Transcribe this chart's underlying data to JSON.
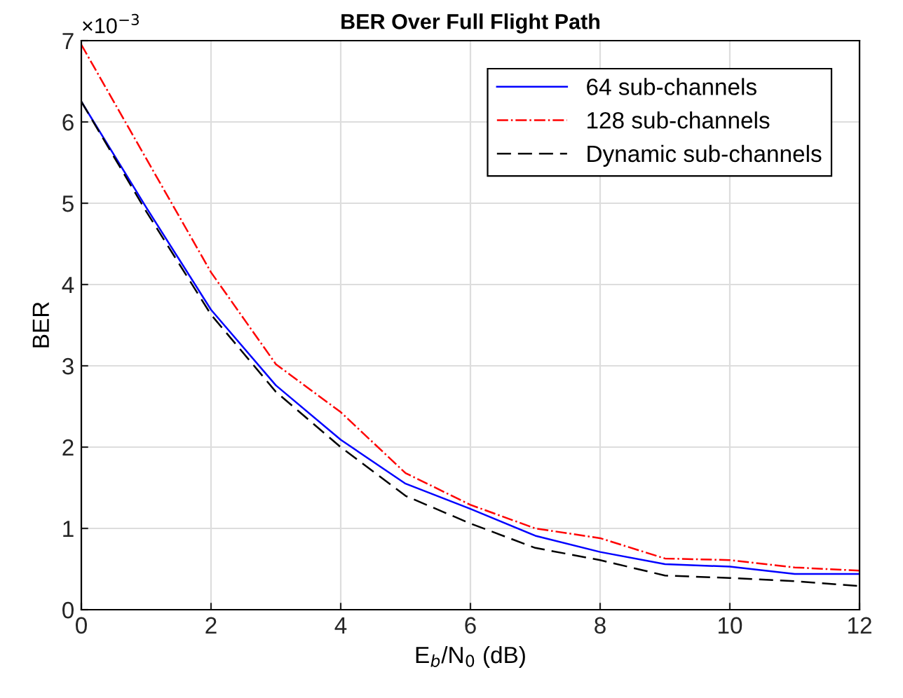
{
  "chart_data": {
    "type": "line",
    "title": "BER Over Full Flight Path",
    "xlabel": "E$_{b}$/N$_{0}$ (dB)",
    "ylabel": "BER",
    "annotations": [
      "×10$^{−3}$"
    ],
    "x": [
      0,
      1,
      2,
      3,
      4,
      5,
      6,
      7,
      8,
      9,
      10,
      11,
      12
    ],
    "series": [
      {
        "name": "64 sub-channels",
        "color": "#0000ff",
        "line_style": "solid",
        "values": [
          6.25,
          4.95,
          3.69,
          2.76,
          2.09,
          1.55,
          1.24,
          0.91,
          0.71,
          0.56,
          0.53,
          0.44,
          0.44
        ]
      },
      {
        "name": "128 sub-channels",
        "color": "#ff0000",
        "line_style": "dashdot",
        "values": [
          6.95,
          5.55,
          4.15,
          3.02,
          2.43,
          1.68,
          1.29,
          1.0,
          0.88,
          0.63,
          0.61,
          0.52,
          0.48
        ]
      },
      {
        "name": "Dynamic sub-channels",
        "color": "#000000",
        "line_style": "dashed",
        "values": [
          6.25,
          4.9,
          3.63,
          2.68,
          2.0,
          1.4,
          1.06,
          0.76,
          0.61,
          0.42,
          0.39,
          0.35,
          0.29
        ]
      }
    ],
    "xlim": [
      0,
      12
    ],
    "xticks": [
      0,
      2,
      4,
      6,
      8,
      10,
      12
    ],
    "ylim": [
      0,
      7
    ],
    "yticks": [
      0,
      1,
      2,
      3,
      4,
      5,
      6,
      7
    ],
    "grid": true,
    "legend": "top right",
    "marker": "none"
  }
}
